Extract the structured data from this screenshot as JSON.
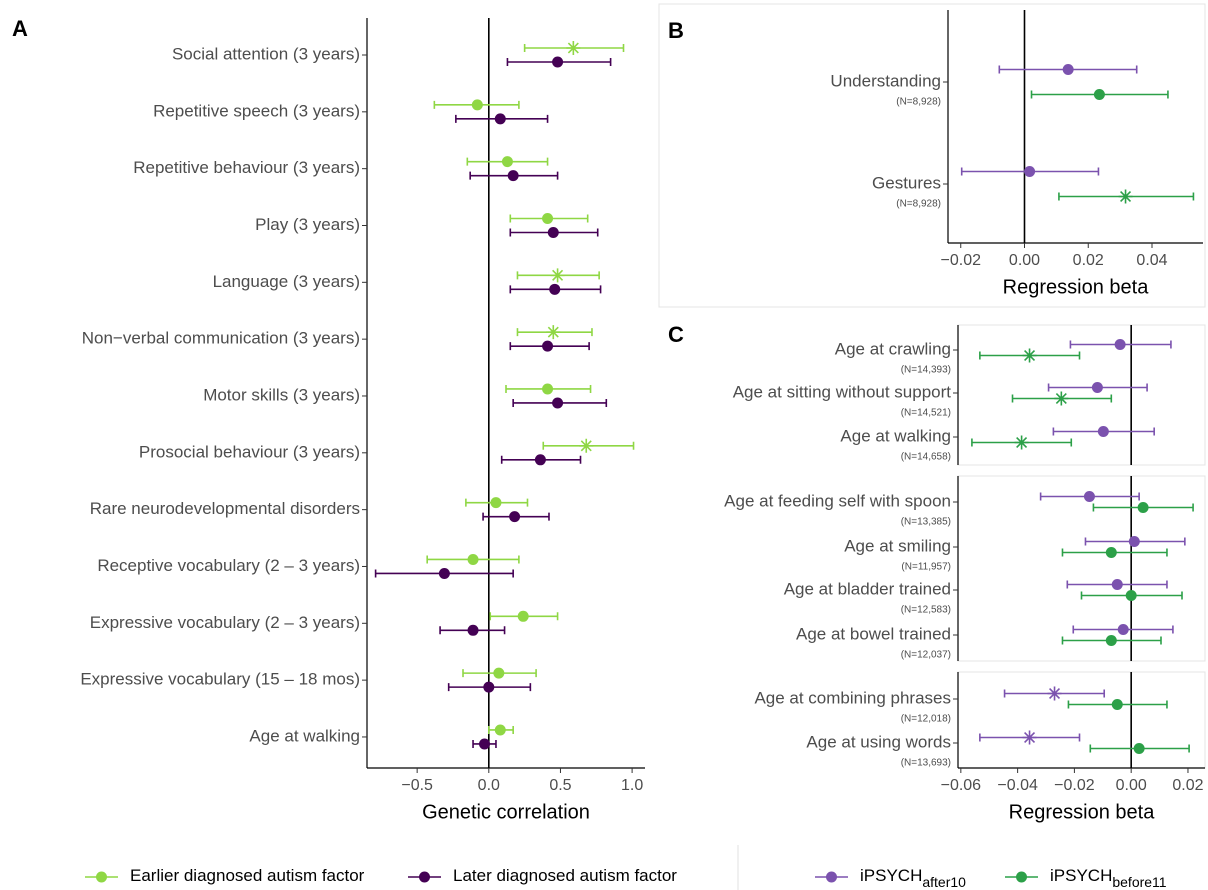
{
  "chart_data": [
    {
      "type": "forest",
      "panel_label": "A",
      "x_label": "Genetic correlation",
      "categories": [
        "Social attention (3 years)",
        "Repetitive speech (3 years)",
        "Repetitive behaviour (3 years)",
        "Play (3 years)",
        "Language (3 years)",
        "Non−verbal communication (3 years)",
        "Motor skills (3 years)",
        "Prosocial behaviour (3 years)",
        "Rare neurodevelopmental disorders",
        "Receptive vocabulary (2 – 3 years)",
        "Expressive vocabulary (2 – 3 years)",
        "Expressive vocabulary (15 – 18 mos)",
        "Age at walking"
      ],
      "xlim": [
        -0.85,
        1.09
      ],
      "xticks": [
        {
          "value": -0.5,
          "label": "−0.5"
        },
        {
          "value": 0,
          "label": "0.0"
        },
        0.5,
        {
          "value": 1,
          "label": "1.0"
        }
      ],
      "vline": 0,
      "series": [
        {
          "name": "Later diagnosed autism factor",
          "color": "#440154",
          "values": [
            0.48,
            0.08,
            0.17,
            0.45,
            0.46,
            0.41,
            0.48,
            0.36,
            0.18,
            -0.31,
            -0.11,
            0.0,
            -0.03
          ],
          "low": [
            0.13,
            -0.23,
            -0.13,
            0.15,
            0.15,
            0.15,
            0.17,
            0.09,
            -0.04,
            -0.79,
            -0.34,
            -0.28,
            -0.11
          ],
          "high": [
            0.85,
            0.41,
            0.48,
            0.76,
            0.78,
            0.7,
            0.82,
            0.64,
            0.42,
            0.17,
            0.11,
            0.29,
            0.05
          ],
          "markers": [
            "circle",
            "circle",
            "circle",
            "circle",
            "circle",
            "circle",
            "circle",
            "circle",
            "circle",
            "circle",
            "circle",
            "circle",
            "circle"
          ]
        },
        {
          "name": "Earlier diagnosed autism factor",
          "color": "#8fd744",
          "values": [
            0.59,
            -0.08,
            0.13,
            0.41,
            0.48,
            0.45,
            0.41,
            0.68,
            0.05,
            -0.11,
            0.24,
            0.07,
            0.08
          ],
          "low": [
            0.25,
            -0.38,
            -0.15,
            0.15,
            0.2,
            0.2,
            0.12,
            0.38,
            -0.16,
            -0.43,
            0.01,
            -0.18,
            0.0
          ],
          "high": [
            0.94,
            0.21,
            0.41,
            0.69,
            0.77,
            0.72,
            0.71,
            1.01,
            0.27,
            0.21,
            0.48,
            0.33,
            0.17
          ],
          "markers": [
            "asterisk",
            "circle",
            "circle",
            "circle",
            "asterisk",
            "asterisk",
            "circle",
            "asterisk",
            "circle",
            "circle",
            "circle",
            "circle",
            "circle"
          ]
        }
      ]
    },
    {
      "type": "forest",
      "panel_label": "B",
      "x_label": "Regression beta",
      "categories": [
        "Understanding",
        "Gestures"
      ],
      "sample_sizes": [
        "(N=8,928)",
        "(N=8,928)"
      ],
      "xlim": [
        -0.024,
        0.056
      ],
      "xticks": [
        {
          "value": -0.02,
          "label": "−0.02"
        },
        {
          "value": 0,
          "label": "0.00"
        },
        0.02,
        0.04
      ],
      "vline": 0,
      "series": [
        {
          "color": "#2ca048",
          "values": [
            0.0235,
            0.0317
          ],
          "low": [
            0.0022,
            0.0108
          ],
          "high": [
            0.045,
            0.053
          ],
          "markers": [
            "circle",
            "asterisk"
          ]
        },
        {
          "color": "#7b52ae",
          "values": [
            0.0137,
            0.0016
          ],
          "low": [
            -0.0079,
            -0.0197
          ],
          "high": [
            0.0352,
            0.0232
          ],
          "markers": [
            "circle",
            "circle"
          ]
        }
      ]
    },
    {
      "type": "forest",
      "panel_label": "C",
      "x_label": "Regression beta",
      "xlim": [
        -0.061,
        0.026
      ],
      "xticks": [
        {
          "value": -0.06,
          "label": "−0.06"
        },
        {
          "value": -0.04,
          "label": "−0.04"
        },
        {
          "value": -0.02,
          "label": "−0.02"
        },
        {
          "value": 0,
          "label": "0.00"
        },
        0.02
      ],
      "vline": 0,
      "series": [
        {
          "name": "iPSYCH",
          "name_subscript": "before11",
          "color": "#2ca048"
        },
        {
          "name": "iPSYCH",
          "name_subscript": "after10",
          "color": "#7b52ae"
        }
      ],
      "legend_order": [
        1,
        0
      ],
      "groups": [
        {
          "categories": [
            "Age at crawling",
            "Age at sitting without support",
            "Age at walking"
          ],
          "sample_sizes": [
            "(N=14,393)",
            "(N=14,521)",
            "(N=14,658)"
          ],
          "series": [
            {
              "values": [
                -0.0358,
                -0.0246,
                -0.0386
              ],
              "low": [
                -0.0533,
                -0.0418,
                -0.0561
              ],
              "high": [
                -0.0182,
                -0.007,
                -0.0211
              ],
              "markers": [
                "asterisk",
                "asterisk",
                "asterisk"
              ]
            },
            {
              "values": [
                -0.0039,
                -0.0119,
                -0.0098
              ],
              "low": [
                -0.0214,
                -0.0291,
                -0.0274
              ],
              "high": [
                0.014,
                0.0056,
                0.0081
              ],
              "markers": [
                "circle",
                "circle",
                "circle"
              ]
            }
          ]
        },
        {
          "categories": [
            "Age at feeding self with spoon",
            "Age at smiling",
            "Age at bladder trained",
            "Age at bowel trained"
          ],
          "sample_sizes": [
            "(N=13,385)",
            "(N=11,957)",
            "(N=12,583)",
            "(N=12,037)"
          ],
          "series": [
            {
              "values": [
                0.0042,
                -0.007,
                0.0,
                -0.007
              ],
              "low": [
                -0.0133,
                -0.0242,
                -0.0175,
                -0.0242
              ],
              "high": [
                0.0218,
                0.0126,
                0.0179,
                0.0105
              ],
              "markers": [
                "circle",
                "circle",
                "circle",
                "circle"
              ]
            },
            {
              "values": [
                -0.0147,
                0.0011,
                -0.0049,
                -0.0028
              ],
              "low": [
                -0.0319,
                -0.0161,
                -0.0225,
                -0.0204
              ],
              "high": [
                0.0028,
                0.0189,
                0.0126,
                0.0147
              ],
              "markers": [
                "circle",
                "circle",
                "circle",
                "circle"
              ]
            }
          ]
        },
        {
          "categories": [
            "Age at combining phrases",
            "Age at using words"
          ],
          "sample_sizes": [
            "(N=12,018)",
            "(N=13,693)"
          ],
          "series": [
            {
              "values": [
                -0.0049,
                0.0028
              ],
              "low": [
                -0.0221,
                -0.0144
              ],
              "high": [
                0.0126,
                0.0204
              ],
              "markers": [
                "circle",
                "circle"
              ]
            },
            {
              "values": [
                -0.027,
                -0.0358
              ],
              "low": [
                -0.0446,
                -0.0533
              ],
              "high": [
                -0.0095,
                -0.0182
              ],
              "markers": [
                "asterisk",
                "asterisk"
              ]
            }
          ]
        }
      ]
    }
  ]
}
